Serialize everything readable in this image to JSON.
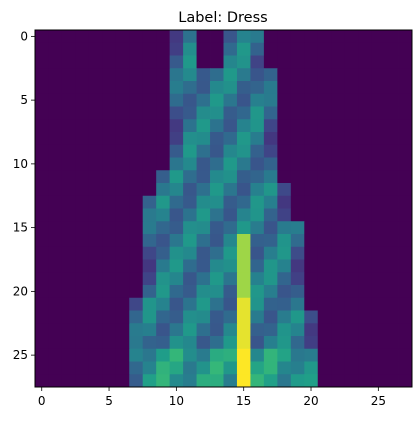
{
  "title": "Label: Dress",
  "image": {
    "rows": 28,
    "cols": 28,
    "colormap": "viridis",
    "background_color": "#440154",
    "peak_color": "#fde725",
    "description_of_content": "grayscale clothing item rendered with viridis colormap"
  },
  "x_ticks": [
    "0",
    "5",
    "10",
    "15",
    "20",
    "25"
  ],
  "y_ticks": [
    "0",
    "5",
    "10",
    "15",
    "20",
    "25"
  ]
}
